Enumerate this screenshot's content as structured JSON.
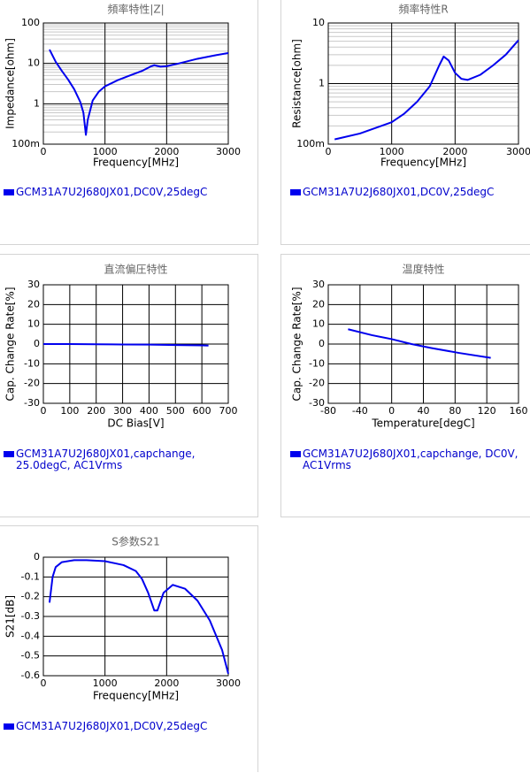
{
  "chart_data": [
    {
      "type": "line",
      "title": "頻率特性|Z|",
      "xlabel": "Frequency[MHz]",
      "ylabel": "Impedance[ohm]",
      "x": [
        100,
        200,
        300,
        400,
        500,
        600,
        650,
        690,
        720,
        800,
        900,
        1000,
        1200,
        1400,
        1600,
        1750,
        1800,
        1900,
        2000,
        2200,
        2500,
        2800,
        3000
      ],
      "series": [
        {
          "name": "GCM31A7U2J680JX01,DC0V,25degC",
          "color": "#0000ee",
          "values": [
            22,
            11,
            6.5,
            4,
            2.3,
            1.1,
            0.6,
            0.17,
            0.4,
            1.2,
            2,
            2.7,
            3.8,
            5,
            6.5,
            8.5,
            9,
            8.3,
            8.5,
            10,
            13,
            16,
            18
          ]
        }
      ],
      "xlim": [
        0,
        3000
      ],
      "ylim": [
        0.1,
        100
      ],
      "xticks": [
        0,
        1000,
        2000,
        3000
      ],
      "yticks": [
        {
          "value": 0.1,
          "label": "100m"
        },
        1,
        10,
        100
      ],
      "ylog": true,
      "grid": true
    },
    {
      "type": "line",
      "title": "頻率特性R",
      "xlabel": "Frequency[MHz]",
      "ylabel": "Resistance[ohm]",
      "x": [
        100,
        500,
        1000,
        1200,
        1400,
        1600,
        1750,
        1820,
        1900,
        2000,
        2100,
        2200,
        2400,
        2600,
        2800,
        3000
      ],
      "series": [
        {
          "name": "GCM31A7U2J680JX01,DC0V,25degC",
          "color": "#0000ee",
          "values": [
            0.12,
            0.15,
            0.23,
            0.32,
            0.5,
            0.9,
            2,
            2.8,
            2.4,
            1.5,
            1.2,
            1.15,
            1.4,
            2,
            3,
            5.2
          ]
        }
      ],
      "xlim": [
        0,
        3000
      ],
      "ylim": [
        0.1,
        10
      ],
      "xticks": [
        0,
        1000,
        2000,
        3000
      ],
      "yticks": [
        {
          "value": 0.1,
          "label": "100m"
        },
        1,
        10
      ],
      "ylog": true,
      "grid": true
    },
    {
      "type": "line",
      "title": "直流偏圧特性",
      "xlabel": "DC Bias[V]",
      "ylabel": "Cap. Change Rate[%]",
      "x": [
        0,
        100,
        200,
        300,
        400,
        500,
        600,
        625
      ],
      "series": [
        {
          "name": "GCM31A7U2J680JX01,capchange, 25.0degC, AC1Vrms",
          "color": "#0000ee",
          "values": [
            0,
            0,
            -0.1,
            -0.2,
            -0.3,
            -0.5,
            -0.7,
            -0.8
          ]
        }
      ],
      "xlim": [
        0,
        700
      ],
      "ylim": [
        -30,
        30
      ],
      "xticks": [
        0,
        100,
        200,
        300,
        400,
        500,
        600,
        700
      ],
      "yticks": [
        -30,
        -20,
        -10,
        0,
        10,
        20,
        30
      ],
      "ylog": false,
      "grid": true
    },
    {
      "type": "line",
      "title": "温度特性",
      "xlabel": "Temperature[degC]",
      "ylabel": "Cap. Change Rate[%]",
      "x": [
        -55,
        -25,
        0,
        25,
        50,
        85,
        125
      ],
      "series": [
        {
          "name": "GCM31A7U2J680JX01,capchange, DC0V, AC1Vrms",
          "color": "#0000ee",
          "values": [
            7.5,
            4.5,
            2.5,
            0,
            -2,
            -4.5,
            -7
          ]
        }
      ],
      "xlim": [
        -80,
        160
      ],
      "ylim": [
        -30,
        30
      ],
      "xticks": [
        -80,
        -40,
        0,
        40,
        80,
        120,
        160
      ],
      "yticks": [
        -30,
        -20,
        -10,
        0,
        10,
        20,
        30
      ],
      "ylog": false,
      "grid": true
    },
    {
      "type": "line",
      "title": "S参数S21",
      "xlabel": "Frequency[MHz]",
      "ylabel": "S21[dB]",
      "x": [
        100,
        150,
        200,
        300,
        500,
        700,
        1000,
        1300,
        1500,
        1600,
        1700,
        1800,
        1850,
        1950,
        2100,
        2300,
        2500,
        2700,
        2900,
        3000
      ],
      "series": [
        {
          "name": "GCM31A7U2J680JX01,DC0V,25degC",
          "color": "#0000ee",
          "values": [
            -0.23,
            -0.1,
            -0.05,
            -0.025,
            -0.015,
            -0.015,
            -0.02,
            -0.04,
            -0.07,
            -0.11,
            -0.18,
            -0.27,
            -0.27,
            -0.18,
            -0.14,
            -0.16,
            -0.22,
            -0.32,
            -0.47,
            -0.59
          ]
        }
      ],
      "xlim": [
        0,
        3000
      ],
      "ylim": [
        -0.6,
        0
      ],
      "xticks": [
        0,
        1000,
        2000,
        3000
      ],
      "yticks": [
        -0.6,
        -0.5,
        -0.4,
        -0.3,
        -0.2,
        -0.1,
        0
      ],
      "ylog": false,
      "grid": true
    }
  ]
}
